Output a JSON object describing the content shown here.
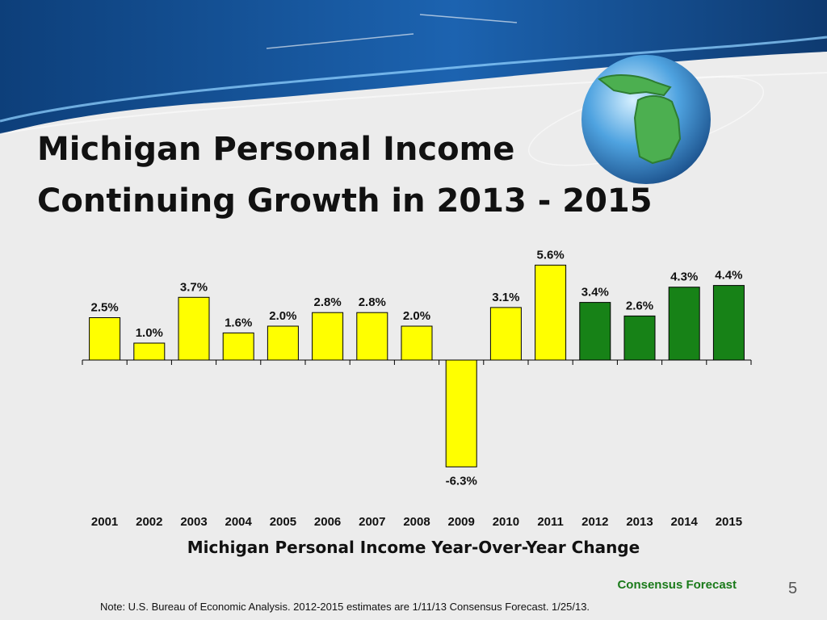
{
  "slide": {
    "title_line1": "Michigan Personal Income",
    "title_line2": "Continuing Growth in 2013 - 2015",
    "caption": "Michigan Personal Income Year-Over-Year Change",
    "consensus_label": "Consensus Forecast",
    "note": "Note: U.S. Bureau of Economic Analysis.  2012-2015 estimates are 1/11/13 Consensus Forecast.  1/25/13.",
    "page_number": "5"
  },
  "colors": {
    "actual": "#ffff00",
    "forecast": "#178217",
    "accent_green": "#1a7a1a",
    "banner_blue": "#1a5fa8"
  },
  "icons": [
    "michigan-globe-logo"
  ],
  "chart_data": {
    "type": "bar",
    "categories": [
      "2001",
      "2002",
      "2003",
      "2004",
      "2005",
      "2006",
      "2007",
      "2008",
      "2009",
      "2010",
      "2011",
      "2012",
      "2013",
      "2014",
      "2015"
    ],
    "values": [
      2.5,
      1.0,
      3.7,
      1.6,
      2.0,
      2.8,
      2.8,
      2.0,
      -6.3,
      3.1,
      5.6,
      3.4,
      2.6,
      4.3,
      4.4
    ],
    "data_labels": [
      "2.5%",
      "1.0%",
      "3.7%",
      "1.6%",
      "2.0%",
      "2.8%",
      "2.8%",
      "2.0%",
      "-6.3%",
      "3.1%",
      "5.6%",
      "3.4%",
      "2.6%",
      "4.3%",
      "4.4%"
    ],
    "bar_colors": [
      "#ffff00",
      "#ffff00",
      "#ffff00",
      "#ffff00",
      "#ffff00",
      "#ffff00",
      "#ffff00",
      "#ffff00",
      "#ffff00",
      "#ffff00",
      "#ffff00",
      "#178217",
      "#178217",
      "#178217",
      "#178217"
    ],
    "title": "",
    "xlabel": "Michigan Personal Income Year-Over-Year Change",
    "ylabel": "",
    "ylim": [
      -6.3,
      5.6
    ],
    "grid": false,
    "legend": "none"
  }
}
